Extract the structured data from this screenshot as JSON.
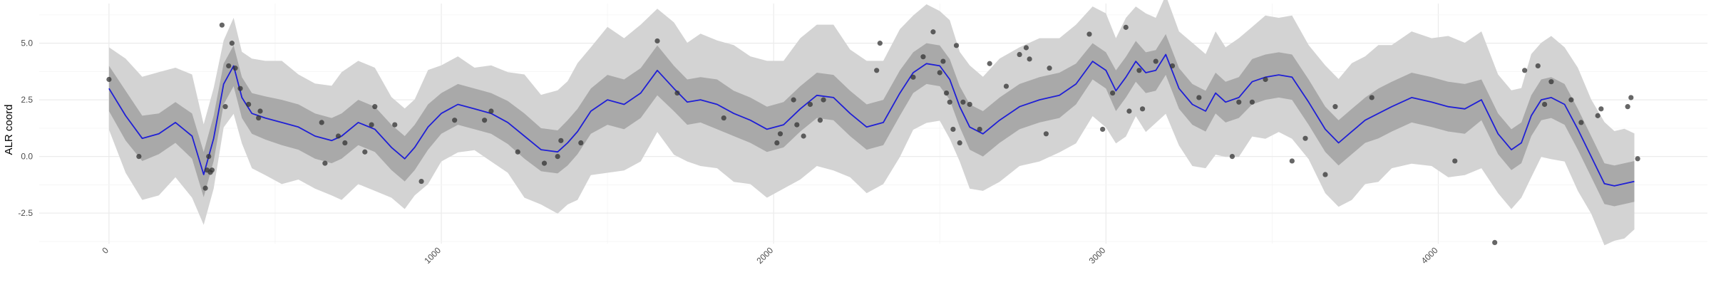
{
  "chart_data": {
    "type": "line",
    "title": "",
    "xlabel": "",
    "ylabel": "ALR coord",
    "xlim": [
      -210,
      4810
    ],
    "ylim": [
      -3.85,
      6.75
    ],
    "x_ticks": [
      0,
      1000,
      2000,
      3000,
      4000
    ],
    "x_tick_labels": [
      "0",
      "1000",
      "2000",
      "3000",
      "4000"
    ],
    "y_ticks": [
      -2.5,
      0.0,
      2.5,
      5.0
    ],
    "y_tick_labels": [
      "-2.5",
      "0.0",
      "2.5",
      "5.0"
    ],
    "grid": true,
    "legend": "none",
    "colors": {
      "mean_line": "#1f1fd6",
      "inner_band": "#a9a9a9",
      "outer_band": "#d3d3d3",
      "points": "#333333"
    },
    "series": [
      {
        "type": "line",
        "x": [
          0,
          50,
          100,
          150,
          200,
          250,
          285,
          315,
          345,
          375,
          400,
          430,
          470,
          520,
          570,
          620,
          670,
          700,
          750,
          800,
          850,
          890,
          920,
          960,
          1000,
          1050,
          1100,
          1150,
          1200,
          1250,
          1300,
          1350,
          1380,
          1410,
          1450,
          1500,
          1550,
          1600,
          1650,
          1700,
          1740,
          1780,
          1830,
          1880,
          1930,
          1980,
          2030,
          2080,
          2130,
          2180,
          2230,
          2280,
          2330,
          2380,
          2420,
          2460,
          2500,
          2530,
          2560,
          2590,
          2630,
          2680,
          2740,
          2800,
          2860,
          2910,
          2960,
          3000,
          3030,
          3060,
          3090,
          3120,
          3150,
          3180,
          3220,
          3260,
          3300,
          3330,
          3360,
          3400,
          3440,
          3480,
          3520,
          3560,
          3610,
          3660,
          3700,
          3740,
          3780,
          3820,
          3860,
          3920,
          3980,
          4030,
          4080,
          4130,
          4180,
          4220,
          4250,
          4280,
          4310,
          4340,
          4380,
          4420,
          4460,
          4500,
          4530,
          4560,
          4590
        ],
        "y": [
          3.0,
          1.8,
          0.8,
          1.0,
          1.5,
          0.9,
          -0.8,
          0.8,
          3.2,
          4.0,
          2.6,
          1.9,
          1.7,
          1.5,
          1.3,
          0.9,
          0.7,
          0.9,
          1.5,
          1.2,
          0.4,
          -0.1,
          0.4,
          1.3,
          1.9,
          2.3,
          2.1,
          1.9,
          1.5,
          0.9,
          0.3,
          0.2,
          0.6,
          1.1,
          2.0,
          2.5,
          2.3,
          2.8,
          3.8,
          3.0,
          2.4,
          2.5,
          2.3,
          1.9,
          1.6,
          1.2,
          1.4,
          2.1,
          2.7,
          2.6,
          1.9,
          1.3,
          1.5,
          2.8,
          3.7,
          4.1,
          4.0,
          3.4,
          2.2,
          1.3,
          1.0,
          1.6,
          2.2,
          2.5,
          2.7,
          3.2,
          4.2,
          3.8,
          2.9,
          3.5,
          4.2,
          3.7,
          3.8,
          4.5,
          3.0,
          2.3,
          2.0,
          2.8,
          2.4,
          2.6,
          3.3,
          3.5,
          3.6,
          3.5,
          2.4,
          1.2,
          0.6,
          1.1,
          1.6,
          1.9,
          2.2,
          2.6,
          2.4,
          2.2,
          2.1,
          2.5,
          1.0,
          0.3,
          0.6,
          1.8,
          2.5,
          2.6,
          2.3,
          1.2,
          0.0,
          -1.2,
          -1.3,
          -1.2,
          -1.1
        ],
        "inner_band": [
          1.0,
          1.1,
          1.0,
          0.9,
          0.9,
          1.0,
          1.0,
          1.0,
          0.9,
          0.9,
          0.9,
          0.9,
          0.95,
          1.0,
          1.0,
          1.0,
          1.0,
          1.0,
          1.0,
          1.0,
          1.0,
          1.0,
          1.0,
          1.0,
          0.9,
          0.9,
          0.9,
          0.9,
          0.95,
          1.0,
          0.95,
          0.95,
          1.0,
          1.0,
          1.0,
          1.1,
          1.1,
          1.1,
          1.1,
          1.0,
          1.0,
          1.0,
          1.1,
          1.0,
          1.0,
          1.0,
          1.0,
          1.0,
          1.0,
          1.0,
          1.0,
          1.0,
          1.0,
          1.0,
          0.9,
          0.9,
          0.9,
          0.9,
          0.9,
          1.0,
          1.0,
          1.0,
          1.0,
          1.0,
          1.0,
          0.9,
          0.8,
          0.8,
          0.9,
          0.9,
          0.9,
          0.9,
          0.9,
          0.9,
          0.9,
          0.9,
          0.9,
          0.9,
          0.9,
          0.9,
          1.0,
          1.0,
          1.0,
          1.0,
          1.0,
          1.0,
          1.0,
          1.0,
          1.0,
          1.1,
          1.1,
          1.1,
          1.1,
          1.1,
          1.1,
          0.9,
          0.9,
          0.9,
          0.9,
          0.9,
          0.9,
          0.9,
          0.9,
          0.9,
          0.9,
          0.9,
          0.9,
          0.9,
          0.9
        ],
        "outer_band": [
          1.9,
          2.4,
          2.8,
          2.6,
          2.5,
          2.6,
          2.3,
          2.1,
          2.0,
          2.0,
          2.1,
          2.3,
          2.6,
          2.6,
          2.4,
          2.2,
          2.5,
          2.7,
          2.8,
          2.6,
          2.3,
          2.1,
          2.2,
          2.4,
          2.2,
          2.0,
          1.9,
          2.0,
          2.3,
          2.6,
          2.5,
          2.6,
          2.8,
          2.9,
          2.9,
          3.1,
          3.0,
          2.9,
          2.8,
          2.8,
          2.7,
          2.8,
          2.9,
          2.9,
          2.9,
          2.9,
          2.9,
          3.0,
          3.2,
          3.1,
          2.9,
          2.8,
          2.8,
          2.7,
          2.6,
          2.5,
          2.5,
          2.5,
          2.5,
          2.6,
          2.6,
          2.6,
          2.7,
          2.6,
          2.6,
          2.5,
          2.5,
          2.4,
          2.4,
          2.5,
          2.5,
          2.5,
          2.4,
          2.5,
          2.6,
          2.6,
          2.6,
          2.6,
          2.5,
          2.5,
          2.5,
          2.6,
          2.6,
          2.6,
          2.6,
          2.7,
          2.9,
          2.9,
          2.9,
          2.9,
          2.8,
          2.8,
          2.9,
          3.0,
          3.0,
          2.9,
          2.7,
          2.5,
          2.5,
          2.6,
          2.6,
          2.6,
          2.6,
          2.6,
          2.6,
          2.6,
          2.5,
          2.3,
          2.2
        ]
      },
      {
        "type": "scatter",
        "x": [
          0,
          90,
          290,
          295,
          300,
          305,
          310,
          340,
          350,
          360,
          370,
          380,
          395,
          420,
          450,
          455,
          640,
          650,
          690,
          710,
          770,
          790,
          800,
          860,
          940,
          1040,
          1130,
          1150,
          1230,
          1310,
          1350,
          1360,
          1420,
          1650,
          1710,
          1850,
          2010,
          2020,
          2060,
          2070,
          2090,
          2110,
          2140,
          2150,
          2310,
          2320,
          2420,
          2450,
          2480,
          2500,
          2510,
          2520,
          2530,
          2540,
          2550,
          2560,
          2570,
          2590,
          2620,
          2650,
          2700,
          2740,
          2760,
          2770,
          2820,
          2830,
          2950,
          2990,
          3020,
          3060,
          3070,
          3100,
          3110,
          3150,
          3200,
          3280,
          3380,
          3400,
          3440,
          3480,
          3560,
          3600,
          3660,
          3690,
          3800,
          4050,
          4170,
          4260,
          4300,
          4320,
          4340,
          4400,
          4430,
          4480,
          4490,
          4570,
          4580,
          4600
        ],
        "y": [
          3.4,
          0.0,
          -1.4,
          -0.6,
          0.0,
          -0.7,
          -0.6,
          5.8,
          2.2,
          4.0,
          5.0,
          3.9,
          3.0,
          2.3,
          1.7,
          2.0,
          1.5,
          -0.3,
          0.9,
          0.6,
          0.2,
          1.4,
          2.2,
          1.4,
          -1.1,
          1.6,
          1.6,
          2.0,
          0.2,
          -0.3,
          0.0,
          0.7,
          0.6,
          5.1,
          2.8,
          1.7,
          0.6,
          1.0,
          2.5,
          1.4,
          0.9,
          2.3,
          1.6,
          2.5,
          3.8,
          5.0,
          3.5,
          4.4,
          5.5,
          3.7,
          4.2,
          2.8,
          2.4,
          1.2,
          4.9,
          0.6,
          2.4,
          2.3,
          1.2,
          4.1,
          3.1,
          4.5,
          4.8,
          4.3,
          1.0,
          3.9,
          5.4,
          1.2,
          2.8,
          5.7,
          2.0,
          3.8,
          2.1,
          4.2,
          4.0,
          2.6,
          0.0,
          2.4,
          2.4,
          3.4,
          -0.2,
          0.8,
          -0.8,
          2.2,
          2.6,
          -0.2,
          -3.8,
          3.8,
          4.0,
          2.3,
          3.3,
          2.5,
          1.5,
          1.8,
          2.1,
          2.2,
          2.6,
          -0.1
        ]
      }
    ]
  }
}
